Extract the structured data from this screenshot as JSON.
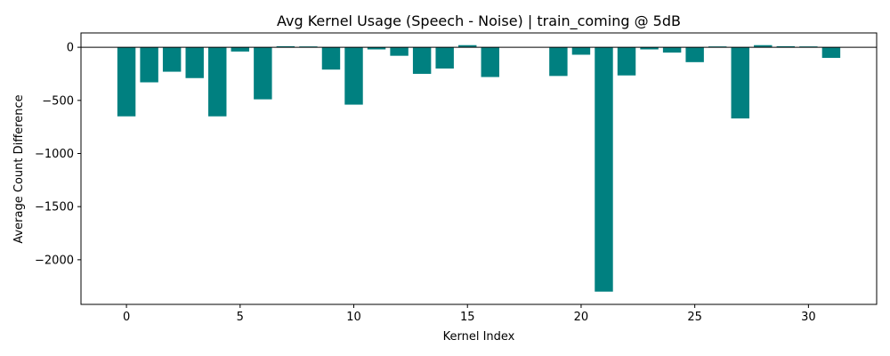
{
  "chart_data": {
    "type": "bar",
    "title": "Avg Kernel Usage (Speech - Noise) | train_coming @ 5dB",
    "xlabel": "Kernel Index",
    "ylabel": "Average Count Difference",
    "bar_color": "#008080",
    "zero_line_color": "#000000",
    "xlim": [
      -2.0,
      33.0
    ],
    "ylim": [
      -2420,
      135
    ],
    "x_ticks": [
      0,
      5,
      10,
      15,
      20,
      25,
      30
    ],
    "x_tick_labels": [
      "0",
      "5",
      "10",
      "15",
      "20",
      "25",
      "30"
    ],
    "y_ticks": [
      0,
      -500,
      -1000,
      -1500,
      -2000
    ],
    "y_tick_labels": [
      "0",
      "−500",
      "−1000",
      "−1500",
      "−2000"
    ],
    "x": [
      0,
      1,
      2,
      3,
      4,
      5,
      6,
      7,
      8,
      9,
      10,
      11,
      12,
      13,
      14,
      15,
      16,
      17,
      18,
      19,
      20,
      21,
      22,
      23,
      24,
      25,
      26,
      27,
      28,
      29,
      30,
      31
    ],
    "values": [
      -650,
      -330,
      -230,
      -290,
      -650,
      -40,
      -490,
      10,
      8,
      -210,
      -540,
      -20,
      -80,
      -250,
      -200,
      20,
      -280,
      0,
      0,
      -270,
      -70,
      -2300,
      -265,
      -20,
      -50,
      -140,
      8,
      -670,
      20,
      10,
      8,
      -100
    ]
  }
}
